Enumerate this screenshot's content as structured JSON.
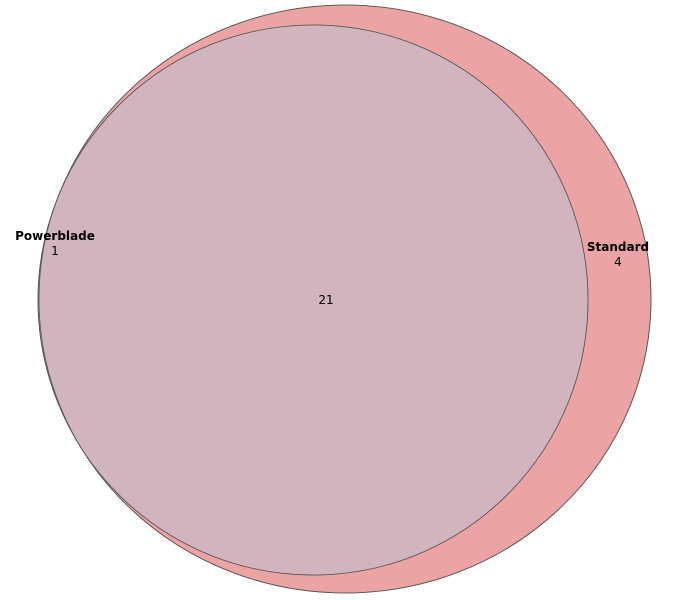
{
  "venn": {
    "sets": [
      {
        "name": "Powerblade",
        "exclusive_count": "1",
        "fill_color": "#9ebed8"
      },
      {
        "name": "Standard",
        "exclusive_count": "4",
        "fill_color": "#eba3a4"
      }
    ],
    "intersection_count": "21",
    "intersection_color": "#d2b4bf",
    "outline_color": "#555555"
  }
}
